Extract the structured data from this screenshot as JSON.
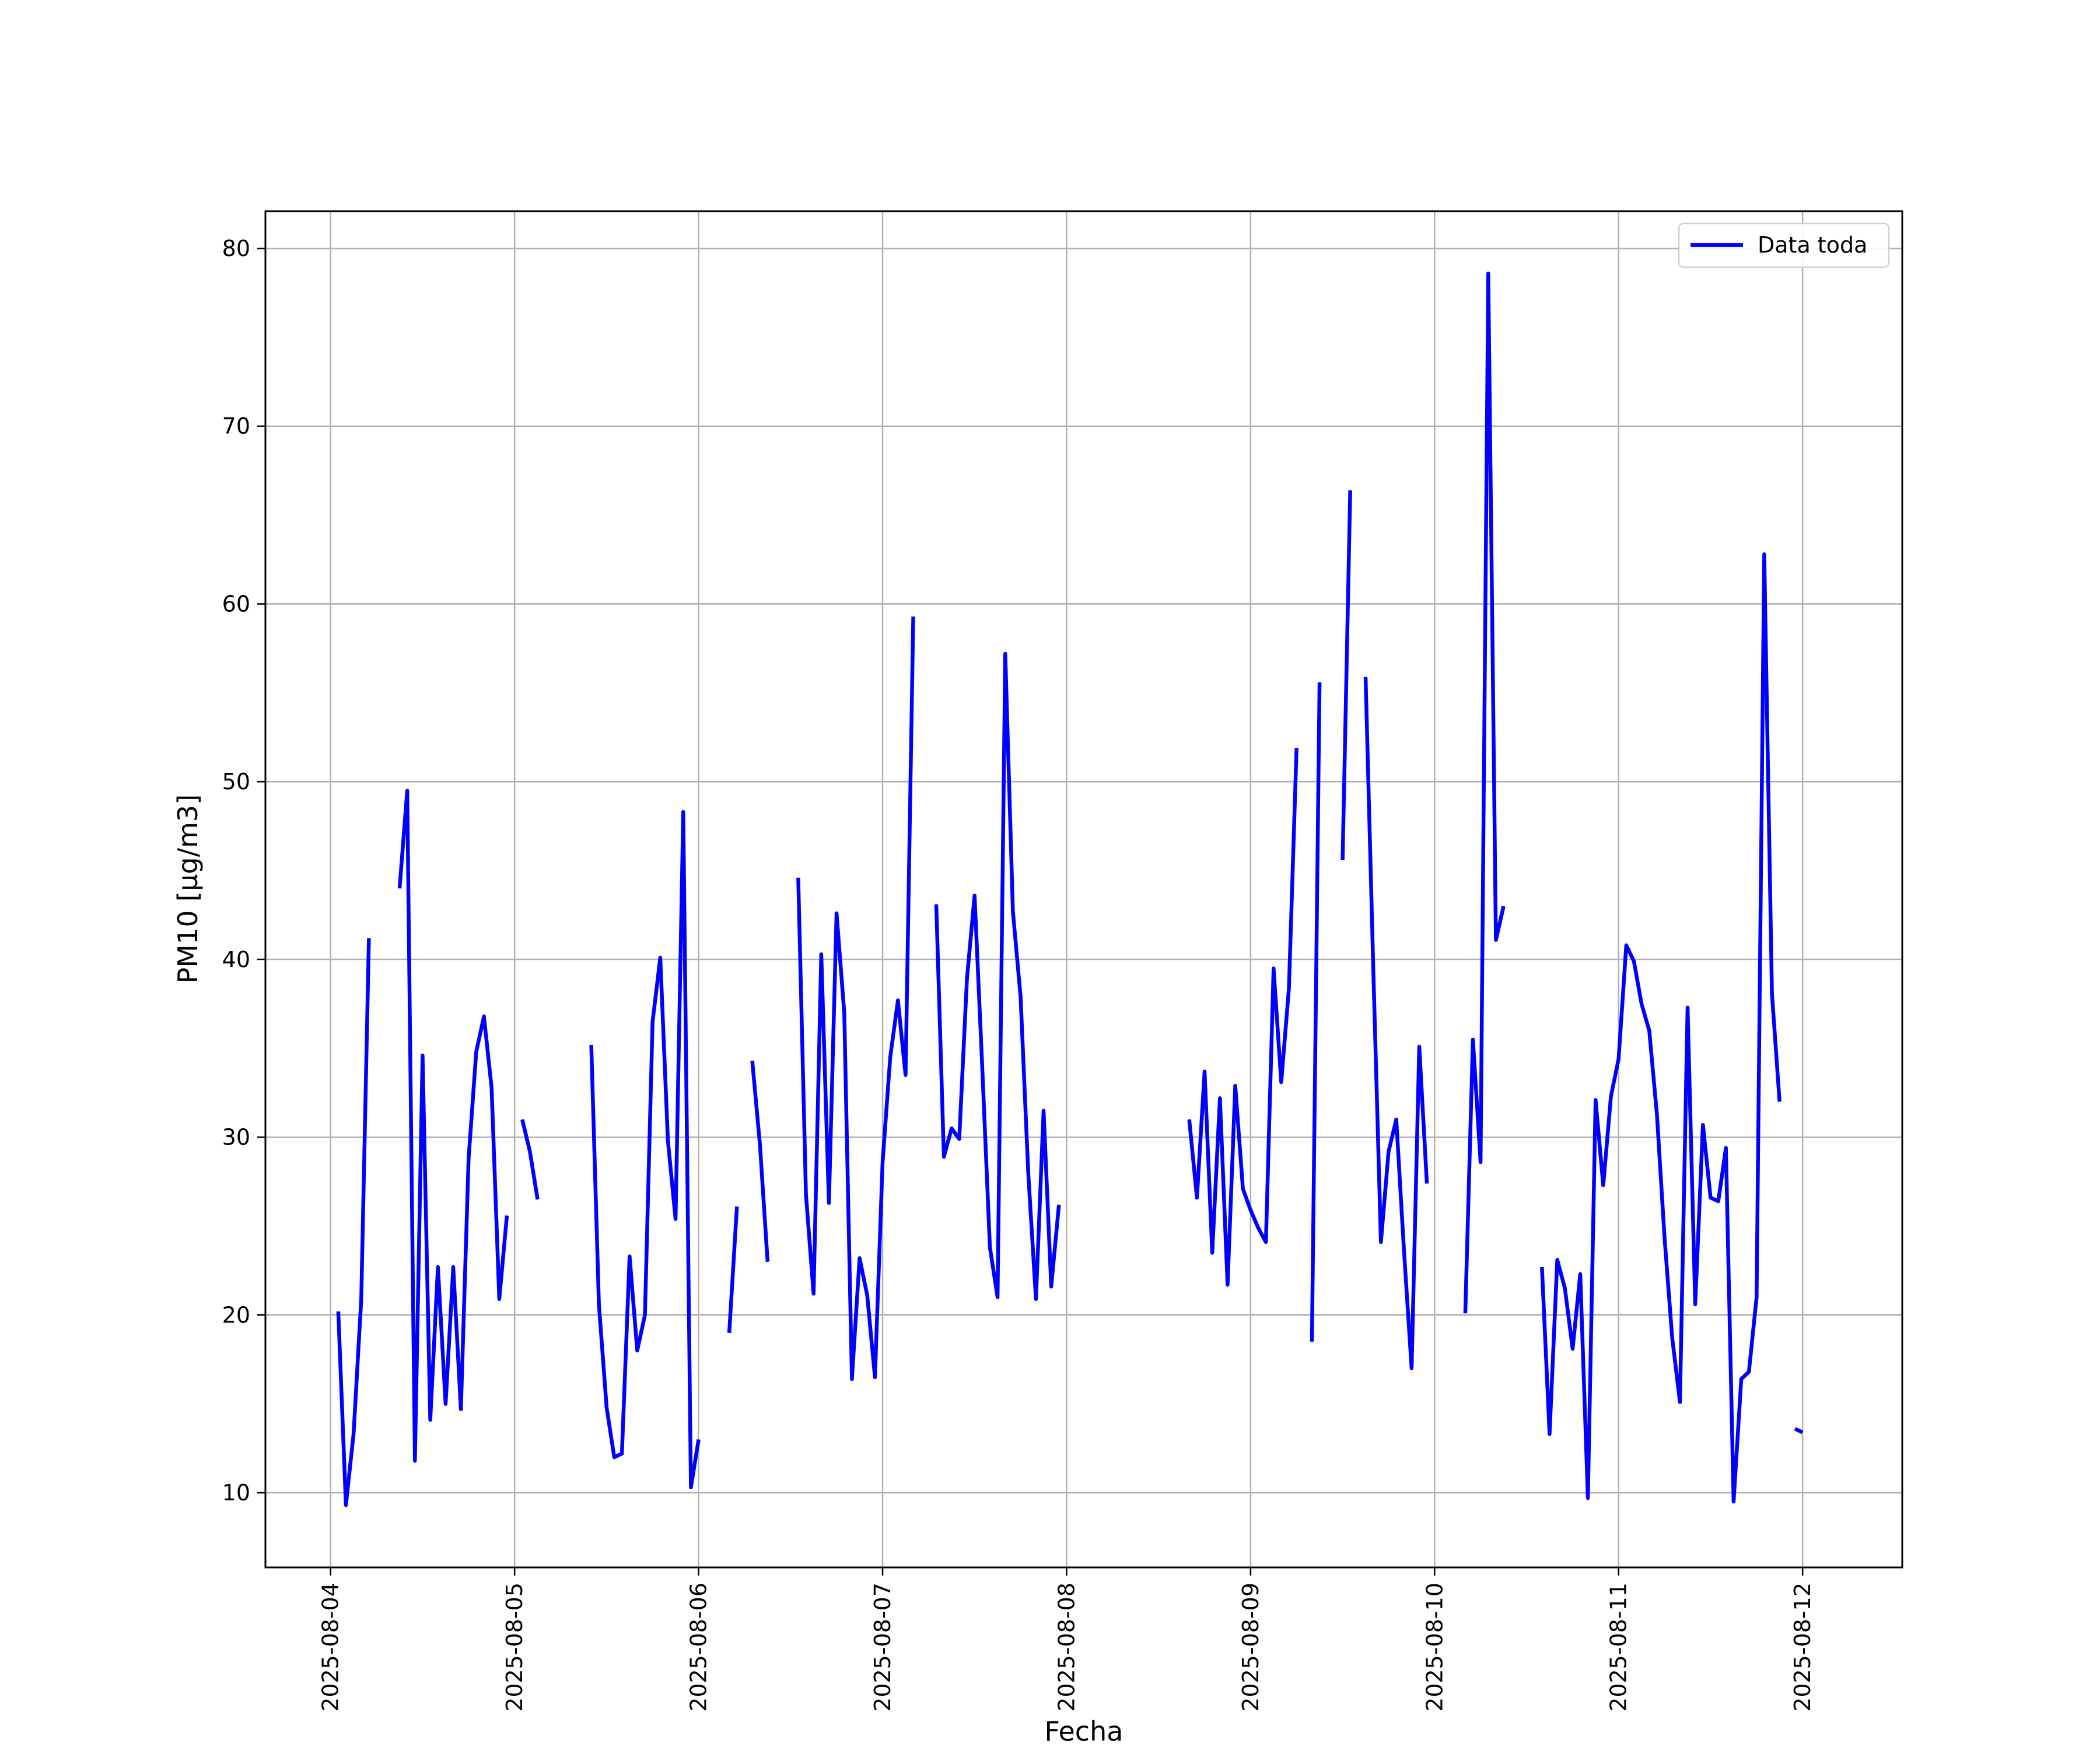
{
  "chart_data": {
    "type": "line",
    "title": "",
    "xlabel": "Fecha",
    "ylabel": "PM10 [μg/m3]",
    "x_ticks": [
      "2025-08-04",
      "2025-08-05",
      "2025-08-06",
      "2025-08-07",
      "2025-08-08",
      "2025-08-09",
      "2025-08-10",
      "2025-08-11",
      "2025-08-12"
    ],
    "y_ticks": [
      "10",
      "20",
      "30",
      "40",
      "50",
      "60",
      "70",
      "80"
    ],
    "xlim": [
      "2025-08-03 15:30",
      "2025-08-12 13:00"
    ],
    "ylim": [
      5.8,
      82.1
    ],
    "grid": true,
    "legend_position": "top-right",
    "series": [
      {
        "name": "Data toda",
        "color": "#0000ff",
        "segments": [
          [
            [
              "2025-08-04 01:00",
              20.2
            ],
            [
              "2025-08-04 02:00",
              9.3
            ],
            [
              "2025-08-04 03:00",
              13.3
            ],
            [
              "2025-08-04 04:00",
              20.9
            ],
            [
              "2025-08-04 05:00",
              41.2
            ]
          ],
          [
            [
              "2025-08-04 09:00",
              44.0
            ],
            [
              "2025-08-04 10:00",
              49.5
            ],
            [
              "2025-08-04 11:00",
              11.8
            ],
            [
              "2025-08-04 12:00",
              34.6
            ],
            [
              "2025-08-04 13:00",
              14.1
            ],
            [
              "2025-08-04 14:00",
              22.7
            ],
            [
              "2025-08-04 15:00",
              15.0
            ],
            [
              "2025-08-04 16:00",
              22.7
            ],
            [
              "2025-08-04 17:00",
              14.7
            ],
            [
              "2025-08-04 18:00",
              28.8
            ],
            [
              "2025-08-04 19:00",
              34.8
            ],
            [
              "2025-08-04 20:00",
              36.8
            ],
            [
              "2025-08-04 21:00",
              32.8
            ],
            [
              "2025-08-04 22:00",
              20.9
            ],
            [
              "2025-08-04 23:00",
              25.6
            ]
          ],
          [
            [
              "2025-08-05 01:00",
              31.0
            ],
            [
              "2025-08-05 02:00",
              29.2
            ],
            [
              "2025-08-05 03:00",
              26.5
            ]
          ],
          [
            [
              "2025-08-05 10:00",
              35.2
            ],
            [
              "2025-08-05 11:00",
              20.6
            ],
            [
              "2025-08-05 12:00",
              14.8
            ],
            [
              "2025-08-05 13:00",
              12.0
            ],
            [
              "2025-08-05 14:00",
              12.2
            ],
            [
              "2025-08-05 15:00",
              23.3
            ],
            [
              "2025-08-05 16:00",
              18.0
            ],
            [
              "2025-08-05 17:00",
              20.0
            ],
            [
              "2025-08-05 18:00",
              36.5
            ],
            [
              "2025-08-05 19:00",
              40.1
            ],
            [
              "2025-08-05 20:00",
              29.8
            ],
            [
              "2025-08-05 21:00",
              25.4
            ],
            [
              "2025-08-05 22:00",
              48.3
            ],
            [
              "2025-08-05 23:00",
              10.3
            ],
            [
              "2025-08-06 00:00",
              13.0
            ]
          ],
          [
            [
              "2025-08-06 04:00",
              19.0
            ],
            [
              "2025-08-06 05:00",
              26.1
            ]
          ],
          [
            [
              "2025-08-06 07:00",
              34.3
            ],
            [
              "2025-08-06 08:00",
              29.6
            ],
            [
              "2025-08-06 09:00",
              23.0
            ]
          ],
          [
            [
              "2025-08-06 13:00",
              44.6
            ],
            [
              "2025-08-06 14:00",
              26.8
            ],
            [
              "2025-08-06 15:00",
              21.2
            ],
            [
              "2025-08-06 16:00",
              40.3
            ],
            [
              "2025-08-06 17:00",
              26.3
            ],
            [
              "2025-08-06 18:00",
              42.6
            ],
            [
              "2025-08-06 19:00",
              37.0
            ],
            [
              "2025-08-06 20:00",
              16.4
            ],
            [
              "2025-08-06 21:00",
              23.2
            ],
            [
              "2025-08-06 22:00",
              21.1
            ],
            [
              "2025-08-06 23:00",
              16.5
            ],
            [
              "2025-08-07 00:00",
              28.6
            ],
            [
              "2025-08-07 01:00",
              34.5
            ],
            [
              "2025-08-07 02:00",
              37.7
            ],
            [
              "2025-08-07 03:00",
              33.5
            ],
            [
              "2025-08-07 04:00",
              59.3
            ]
          ],
          [
            [
              "2025-08-07 07:00",
              43.1
            ],
            [
              "2025-08-07 08:00",
              28.9
            ],
            [
              "2025-08-07 09:00",
              30.5
            ],
            [
              "2025-08-07 10:00",
              29.9
            ],
            [
              "2025-08-07 11:00",
              38.9
            ],
            [
              "2025-08-07 12:00",
              43.6
            ],
            [
              "2025-08-07 13:00",
              33.9
            ],
            [
              "2025-08-07 14:00",
              23.8
            ],
            [
              "2025-08-07 15:00",
              21.0
            ],
            [
              "2025-08-07 16:00",
              57.2
            ],
            [
              "2025-08-07 17:00",
              42.7
            ],
            [
              "2025-08-07 18:00",
              37.9
            ],
            [
              "2025-08-07 19:00",
              28.0
            ],
            [
              "2025-08-07 20:00",
              20.9
            ],
            [
              "2025-08-07 21:00",
              31.5
            ],
            [
              "2025-08-07 22:00",
              21.6
            ],
            [
              "2025-08-07 23:00",
              26.2
            ]
          ],
          [
            [
              "2025-08-08 16:00",
              31.0
            ],
            [
              "2025-08-08 17:00",
              26.6
            ],
            [
              "2025-08-08 18:00",
              33.7
            ],
            [
              "2025-08-08 19:00",
              23.5
            ],
            [
              "2025-08-08 20:00",
              32.2
            ],
            [
              "2025-08-08 21:00",
              21.7
            ],
            [
              "2025-08-08 22:00",
              32.9
            ],
            [
              "2025-08-08 23:00",
              27.1
            ],
            [
              "2025-08-09 00:00",
              25.9
            ],
            [
              "2025-08-09 01:00",
              24.9
            ],
            [
              "2025-08-09 02:00",
              24.1
            ],
            [
              "2025-08-09 03:00",
              39.5
            ],
            [
              "2025-08-09 04:00",
              33.1
            ],
            [
              "2025-08-09 05:00",
              38.4
            ],
            [
              "2025-08-09 06:00",
              51.9
            ]
          ],
          [
            [
              "2025-08-09 08:00",
              18.5
            ],
            [
              "2025-08-09 09:00",
              55.6
            ]
          ],
          [
            [
              "2025-08-09 12:00",
              45.6
            ],
            [
              "2025-08-09 13:00",
              66.4
            ]
          ],
          [
            [
              "2025-08-09 15:00",
              55.9
            ],
            [
              "2025-08-09 16:00",
              39.6
            ],
            [
              "2025-08-09 17:00",
              24.1
            ],
            [
              "2025-08-09 18:00",
              29.2
            ],
            [
              "2025-08-09 19:00",
              31.0
            ],
            [
              "2025-08-09 20:00",
              23.7
            ],
            [
              "2025-08-09 21:00",
              17.0
            ],
            [
              "2025-08-09 22:00",
              35.1
            ],
            [
              "2025-08-09 23:00",
              27.4
            ]
          ],
          [
            [
              "2025-08-10 04:00",
              20.1
            ],
            [
              "2025-08-10 05:00",
              35.5
            ],
            [
              "2025-08-10 06:00",
              28.6
            ],
            [
              "2025-08-10 07:00",
              78.6
            ],
            [
              "2025-08-10 08:00",
              41.1
            ],
            [
              "2025-08-10 09:00",
              43.0
            ]
          ],
          [
            [
              "2025-08-10 14:00",
              22.7
            ],
            [
              "2025-08-10 15:00",
              13.3
            ],
            [
              "2025-08-10 16:00",
              23.1
            ],
            [
              "2025-08-10 17:00",
              21.5
            ],
            [
              "2025-08-10 18:00",
              18.1
            ],
            [
              "2025-08-10 19:00",
              22.3
            ],
            [
              "2025-08-10 20:00",
              9.7
            ],
            [
              "2025-08-10 21:00",
              32.1
            ],
            [
              "2025-08-10 22:00",
              27.3
            ],
            [
              "2025-08-10 23:00",
              32.3
            ],
            [
              "2025-08-11 00:00",
              34.4
            ],
            [
              "2025-08-11 01:00",
              40.8
            ],
            [
              "2025-08-11 02:00",
              39.9
            ],
            [
              "2025-08-11 03:00",
              37.5
            ],
            [
              "2025-08-11 04:00",
              36.0
            ],
            [
              "2025-08-11 05:00",
              31.3
            ],
            [
              "2025-08-11 06:00",
              24.3
            ],
            [
              "2025-08-11 07:00",
              18.7
            ],
            [
              "2025-08-11 08:00",
              15.1
            ],
            [
              "2025-08-11 09:00",
              37.3
            ],
            [
              "2025-08-11 10:00",
              20.6
            ],
            [
              "2025-08-11 11:00",
              30.7
            ],
            [
              "2025-08-11 12:00",
              26.6
            ],
            [
              "2025-08-11 13:00",
              26.4
            ],
            [
              "2025-08-11 14:00",
              29.4
            ],
            [
              "2025-08-11 15:00",
              9.5
            ],
            [
              "2025-08-11 16:00",
              16.4
            ],
            [
              "2025-08-11 17:00",
              16.8
            ],
            [
              "2025-08-11 18:00",
              21.0
            ],
            [
              "2025-08-11 19:00",
              62.8
            ],
            [
              "2025-08-11 20:00",
              38.1
            ],
            [
              "2025-08-11 21:00",
              32.0
            ]
          ],
          [
            [
              "2025-08-11 23:00",
              13.6
            ],
            [
              "2025-08-12 00:00",
              13.4
            ]
          ]
        ]
      }
    ]
  }
}
